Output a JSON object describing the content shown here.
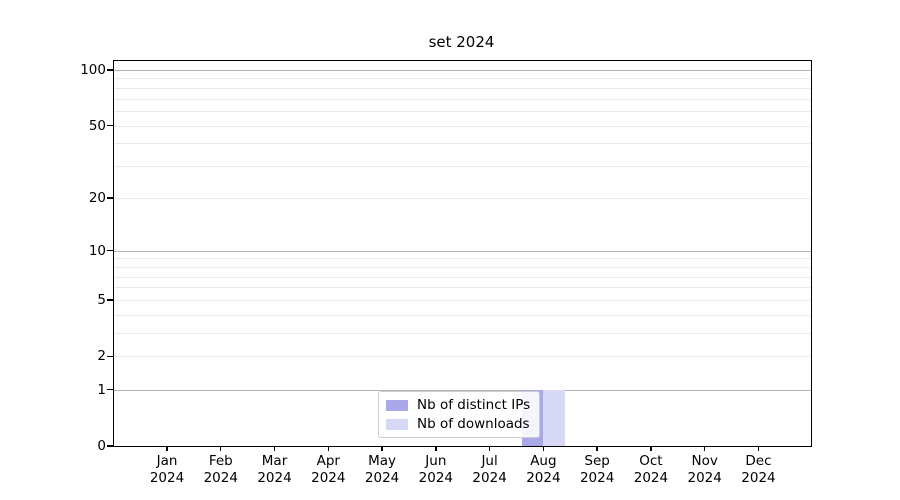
{
  "title": "set 2024",
  "chart_data": {
    "type": "bar",
    "title": "set 2024",
    "categories": [
      "Jan",
      "Feb",
      "Mar",
      "Apr",
      "May",
      "Jun",
      "Jul",
      "Aug",
      "Sep",
      "Oct",
      "Nov",
      "Dec"
    ],
    "year": "2024",
    "series": [
      {
        "name": "Nb of distinct IPs",
        "color": "#a9a9e9",
        "values": [
          0,
          0,
          0,
          0,
          0,
          0,
          0,
          1,
          0,
          0,
          0,
          0
        ]
      },
      {
        "name": "Nb of downloads",
        "color": "#d7d7f6",
        "values": [
          0,
          0,
          0,
          0,
          0,
          0,
          0,
          1,
          0,
          0,
          0,
          0
        ]
      }
    ],
    "yscale": "log1p",
    "ylim": [
      0,
      112
    ],
    "ytick_values": [
      0,
      1,
      2,
      5,
      10,
      20,
      50,
      100
    ],
    "ytick_labels": [
      "0",
      "1",
      "2",
      "5",
      "10",
      "20",
      "50",
      "100"
    ],
    "grid": {
      "emphasis_values": [
        1,
        10,
        100
      ],
      "minor_values": [
        2,
        3,
        4,
        5,
        6,
        7,
        8,
        9,
        20,
        30,
        40,
        50,
        60,
        70,
        80,
        90
      ]
    },
    "legend_position": "bottom-center-inside",
    "colors": {
      "grid_emphasis": "#b5b5b5",
      "grid_minor": "#ebebeb",
      "spine": "#000000",
      "legend_border": "#cccccc",
      "text": "#000000"
    }
  }
}
